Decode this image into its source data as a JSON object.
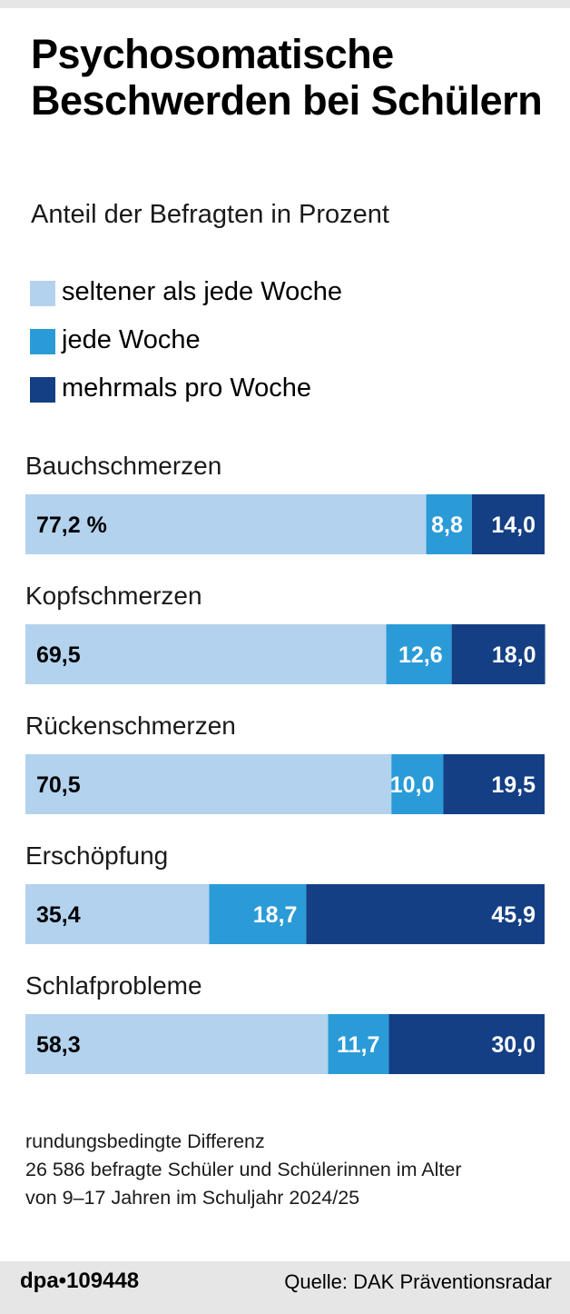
{
  "title": "Psychosomatische Beschwerden bei Schülern",
  "subtitle": "Anteil der Befragten in Prozent",
  "legend": [
    {
      "label": "seltener als jede Woche",
      "color": "#b3d2ee"
    },
    {
      "label": "jede Woche",
      "color": "#2b9bd8"
    },
    {
      "label": "mehrmals pro Woche",
      "color": "#143f84"
    }
  ],
  "chart_data": {
    "type": "bar",
    "orientation": "horizontal",
    "stacked": true,
    "xlim": [
      0,
      100
    ],
    "categories": [
      "Bauchschmerzen",
      "Kopfschmerzen",
      "Rückenschmerzen",
      "Erschöpfung",
      "Schlafprobleme"
    ],
    "series": [
      {
        "name": "seltener als jede Woche",
        "color": "#b3d2ee",
        "values": [
          77.2,
          69.5,
          70.5,
          35.4,
          58.3
        ],
        "labels": [
          "77,2 %",
          "69,5",
          "70,5",
          "35,4",
          "58,3"
        ]
      },
      {
        "name": "jede Woche",
        "color": "#2b9bd8",
        "values": [
          8.8,
          12.6,
          10.0,
          18.7,
          11.7
        ],
        "labels": [
          "8,8",
          "12,6",
          "10,0",
          "18,7",
          "11,7"
        ]
      },
      {
        "name": "mehrmals pro Woche",
        "color": "#143f84",
        "values": [
          14.0,
          18.0,
          19.5,
          45.9,
          30.0
        ],
        "labels": [
          "14,0",
          "18,0",
          "19,5",
          "45,9",
          "30,0"
        ]
      }
    ]
  },
  "footnote": {
    "line1": "rundungsbedingte Differenz",
    "line2": "26 586 befragte Schüler und Schülerinnen im Alter",
    "line3": "von 9–17 Jahren im Schuljahr 2024/25"
  },
  "footer": {
    "brand": "dpa•109448",
    "source": "Quelle: DAK Präventionsradar"
  }
}
